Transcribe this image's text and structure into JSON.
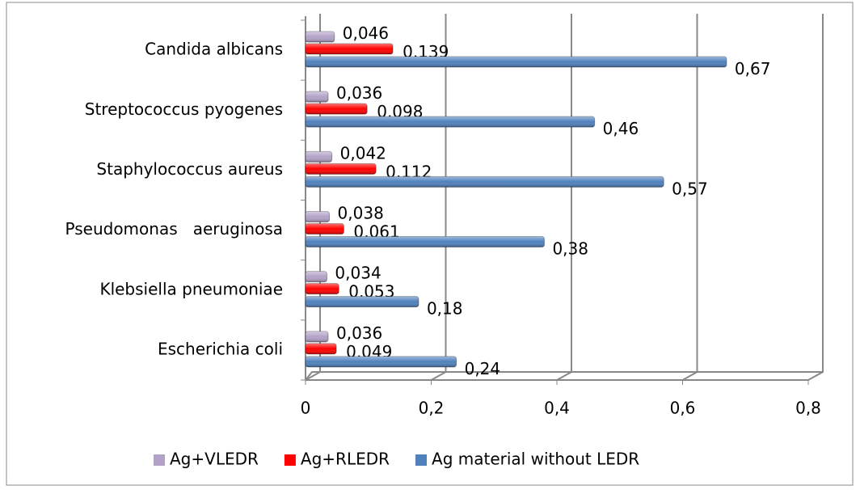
{
  "chart_data": {
    "type": "bar",
    "orientation": "horizontal",
    "categories": [
      "Candida albicans",
      "Streptococcus pyogenes",
      "Staphylococcus aureus",
      "Pseudomonas   aeruginosa",
      "Klebsiella pneumoniae",
      "Escherichia coli"
    ],
    "series": [
      {
        "name": "Ag+VLEDR",
        "color": "#b3a2c7",
        "values": [
          0.046,
          0.036,
          0.042,
          0.038,
          0.034,
          0.036
        ],
        "value_labels": [
          "0,046",
          "0,036",
          "0,042",
          "0,038",
          "0,034",
          "0,036"
        ]
      },
      {
        "name": "Ag+RLEDR",
        "color": "#ff0000",
        "values": [
          0.139,
          0.098,
          0.112,
          0.061,
          0.053,
          0.049
        ],
        "value_labels": [
          "0,139",
          "0,098",
          "0,112",
          "0,061",
          "0,053",
          "0,049"
        ]
      },
      {
        "name": "Ag material without LEDR",
        "color": "#4f81bd",
        "values": [
          0.67,
          0.46,
          0.57,
          0.38,
          0.18,
          0.24
        ],
        "value_labels": [
          "0,67",
          "0,46",
          "0,57",
          "0,38",
          "0,18",
          "0,24"
        ]
      }
    ],
    "xlim": [
      0,
      0.8
    ],
    "xticks": [
      0,
      {
        "value": 0.2,
        "label": "0,2"
      },
      {
        "value": 0.4,
        "label": "0,4"
      },
      {
        "value": 0.6,
        "label": "0,6"
      },
      {
        "value": 0.8,
        "label": "0,8"
      }
    ],
    "grid": true,
    "legend": "bottom"
  }
}
